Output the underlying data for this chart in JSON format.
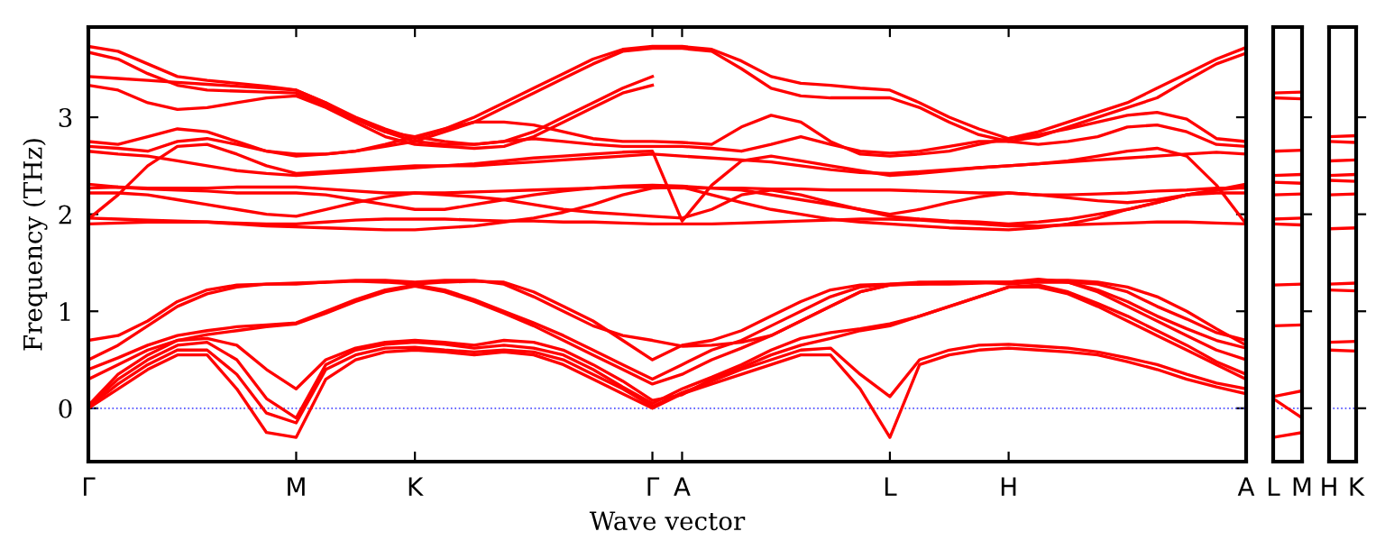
{
  "chart_data": [
    {
      "type": "line",
      "xlabel": "Wave vector",
      "ylabel": "Frequency (THz)",
      "categories": [
        "Γ",
        null,
        null,
        null,
        null,
        null,
        null,
        "M",
        null,
        null,
        null,
        "K",
        null,
        null,
        null,
        null,
        null,
        null,
        null,
        "Γ",
        "A",
        null,
        null,
        null,
        null,
        null,
        null,
        "L",
        null,
        null,
        null,
        "H",
        null,
        null,
        null,
        null,
        null,
        null,
        null,
        "A"
      ],
      "ylim": [
        -0.55,
        3.93
      ],
      "yticks": [
        0,
        1,
        2,
        3
      ],
      "marker": "none",
      "line_style": "solid",
      "ref_lines": [
        {
          "axis": "y",
          "value": 0,
          "label": null,
          "color": "#5050ff",
          "line_style": "dotted"
        }
      ],
      "series": [
        {
          "color": "#ff0000",
          "values": [
            3.73,
            3.68,
            3.55,
            3.42,
            3.38,
            3.35,
            3.32,
            3.28,
            3.15,
            3.0,
            2.88,
            2.78,
            2.88,
            3.0,
            3.15,
            3.3,
            3.45,
            3.6,
            3.7,
            3.73,
            3.73,
            3.7,
            3.58,
            3.42,
            3.35,
            3.33,
            3.3,
            3.28,
            3.15,
            3.0,
            2.88,
            2.78,
            2.85,
            2.95,
            3.05,
            3.15,
            3.3,
            3.45,
            3.6,
            3.72
          ]
        },
        {
          "color": "#ff0000",
          "values": [
            3.67,
            3.6,
            3.45,
            3.33,
            3.28,
            3.27,
            3.26,
            3.25,
            3.12,
            2.98,
            2.85,
            2.75,
            2.85,
            2.95,
            3.1,
            3.25,
            3.4,
            3.55,
            3.68,
            3.71,
            3.71,
            3.68,
            3.5,
            3.3,
            3.22,
            3.2,
            3.2,
            3.2,
            3.1,
            2.95,
            2.82,
            2.75,
            2.8,
            2.9,
            3.0,
            3.1,
            3.2,
            3.38,
            3.55,
            3.66
          ]
        },
        {
          "color": "#ff0000",
          "values": [
            3.42,
            3.4,
            3.38,
            3.36,
            3.34,
            3.32,
            3.3,
            3.28,
            3.15,
            2.98,
            2.85,
            2.8,
            2.75,
            2.72,
            2.75,
            2.85,
            3.0,
            3.15,
            3.3,
            3.42,
            null,
            null,
            null,
            null,
            null,
            null,
            null,
            null,
            null,
            null,
            null,
            null,
            null,
            null,
            null,
            null,
            null,
            null,
            null,
            null
          ]
        },
        {
          "color": "#ff0000",
          "values": [
            3.33,
            3.28,
            3.15,
            3.08,
            3.1,
            3.15,
            3.2,
            3.22,
            3.1,
            2.95,
            2.8,
            2.72,
            2.7,
            2.68,
            2.7,
            2.8,
            2.95,
            3.1,
            3.25,
            3.33,
            null,
            null,
            null,
            null,
            null,
            null,
            null,
            null,
            null,
            null,
            null,
            null,
            null,
            null,
            null,
            null,
            null,
            null,
            null,
            null
          ]
        },
        {
          "color": "#ff0000",
          "values": [
            2.75,
            2.72,
            2.8,
            2.88,
            2.85,
            2.75,
            2.65,
            2.6,
            2.62,
            2.65,
            2.72,
            2.8,
            2.88,
            2.95,
            2.95,
            2.92,
            2.85,
            2.78,
            2.75,
            2.75,
            2.74,
            2.72,
            2.9,
            3.02,
            2.95,
            2.75,
            2.62,
            2.6,
            2.62,
            2.65,
            2.72,
            2.78,
            2.82,
            2.88,
            2.95,
            3.02,
            3.05,
            2.98,
            2.78,
            2.75
          ]
        },
        {
          "color": "#ff0000",
          "values": [
            2.7,
            2.68,
            2.65,
            2.75,
            2.78,
            2.72,
            2.65,
            2.62,
            2.62,
            2.65,
            2.7,
            2.75,
            2.72,
            2.72,
            2.75,
            2.78,
            2.75,
            2.72,
            2.7,
            2.7,
            2.7,
            2.68,
            2.65,
            2.72,
            2.8,
            2.72,
            2.65,
            2.63,
            2.65,
            2.7,
            2.75,
            2.75,
            2.72,
            2.75,
            2.8,
            2.9,
            2.92,
            2.85,
            2.72,
            2.7
          ]
        },
        {
          "color": "#ff0000",
          "values": [
            2.65,
            2.62,
            2.6,
            2.55,
            2.5,
            2.45,
            2.42,
            2.4,
            2.42,
            2.44,
            2.46,
            2.48,
            2.5,
            2.52,
            2.55,
            2.58,
            2.6,
            2.62,
            2.64,
            2.65,
            1.93,
            2.3,
            2.55,
            2.6,
            2.55,
            2.5,
            2.45,
            2.4,
            2.42,
            2.45,
            2.48,
            2.5,
            2.52,
            2.54,
            2.56,
            2.58,
            2.6,
            2.62,
            2.64,
            2.62
          ]
        },
        {
          "color": "#ff0000",
          "values": [
            1.95,
            2.2,
            2.5,
            2.7,
            2.72,
            2.62,
            2.5,
            2.42,
            2.44,
            2.46,
            2.48,
            2.5,
            2.5,
            2.5,
            2.52,
            2.54,
            2.56,
            2.58,
            2.6,
            2.62,
            2.6,
            2.58,
            2.56,
            2.54,
            2.5,
            2.46,
            2.43,
            2.42,
            2.44,
            2.46,
            2.48,
            2.5,
            2.52,
            2.55,
            2.6,
            2.65,
            2.68,
            2.6,
            2.3,
            1.9
          ]
        },
        {
          "color": "#ff0000",
          "values": [
            2.27,
            2.28,
            2.27,
            2.27,
            2.27,
            2.28,
            2.28,
            2.28,
            2.26,
            2.24,
            2.22,
            2.22,
            2.22,
            2.23,
            2.24,
            2.25,
            2.26,
            2.27,
            2.28,
            2.28,
            2.27,
            2.27,
            2.27,
            2.26,
            2.26,
            2.25,
            2.25,
            2.25,
            2.24,
            2.23,
            2.22,
            2.22,
            2.2,
            2.2,
            2.21,
            2.22,
            2.24,
            2.25,
            2.27,
            2.27
          ]
        },
        {
          "color": "#ff0000",
          "values": [
            2.22,
            2.22,
            2.2,
            2.15,
            2.1,
            2.05,
            2.0,
            1.98,
            2.05,
            2.12,
            2.18,
            2.22,
            2.2,
            2.18,
            2.15,
            2.1,
            2.05,
            2.02,
            2.0,
            1.98,
            1.96,
            2.05,
            2.2,
            2.25,
            2.2,
            2.12,
            2.05,
            2.0,
            2.05,
            2.12,
            2.18,
            2.22,
            2.2,
            2.17,
            2.14,
            2.12,
            2.15,
            2.2,
            2.22,
            2.22
          ]
        },
        {
          "color": "#ff0000",
          "values": [
            2.31,
            2.28,
            2.26,
            2.25,
            2.24,
            2.22,
            2.22,
            2.22,
            2.2,
            2.15,
            2.1,
            2.05,
            2.05,
            2.1,
            2.15,
            2.2,
            2.24,
            2.27,
            2.29,
            2.3,
            2.29,
            2.27,
            2.25,
            2.2,
            2.15,
            2.1,
            2.05,
            1.98,
            1.95,
            1.93,
            1.92,
            1.9,
            1.92,
            1.95,
            2.0,
            2.05,
            2.12,
            2.2,
            2.25,
            2.31
          ]
        },
        {
          "color": "#ff0000",
          "values": [
            1.96,
            1.95,
            1.94,
            1.93,
            1.92,
            1.9,
            1.88,
            1.87,
            1.86,
            1.85,
            1.84,
            1.84,
            1.86,
            1.88,
            1.92,
            1.96,
            2.02,
            2.1,
            2.2,
            2.27,
            2.28,
            2.2,
            2.12,
            2.05,
            2.0,
            1.95,
            1.92,
            1.9,
            1.88,
            1.86,
            1.85,
            1.84,
            1.86,
            1.9,
            1.96,
            2.05,
            2.12,
            2.2,
            2.25,
            2.28
          ]
        },
        {
          "color": "#ff0000",
          "values": [
            1.9,
            1.91,
            1.92,
            1.92,
            1.92,
            1.91,
            1.9,
            1.9,
            1.92,
            1.94,
            1.95,
            1.95,
            1.95,
            1.94,
            1.93,
            1.93,
            1.92,
            1.92,
            1.91,
            1.9,
            1.9,
            1.9,
            1.91,
            1.92,
            1.93,
            1.94,
            1.95,
            1.95,
            1.94,
            1.92,
            1.9,
            1.88,
            1.88,
            1.89,
            1.9,
            1.91,
            1.92,
            1.92,
            1.91,
            1.9
          ]
        },
        {
          "color": "#ff0000",
          "values": [
            0,
            0.2,
            0.4,
            0.55,
            0.55,
            0.2,
            -0.25,
            -0.3,
            0.3,
            0.5,
            0.58,
            0.6,
            0.58,
            0.55,
            0.58,
            0.55,
            0.45,
            0.3,
            0.15,
            0,
            0.15,
            0.25,
            0.35,
            0.45,
            0.55,
            0.55,
            0.2,
            -0.3,
            0.45,
            0.55,
            0.6,
            0.62,
            0.6,
            0.58,
            0.55,
            0.48,
            0.4,
            0.3,
            0.22,
            0.15
          ]
        },
        {
          "color": "#ff0000",
          "values": [
            0.01,
            0.25,
            0.45,
            0.6,
            0.6,
            0.35,
            -0.05,
            -0.15,
            0.4,
            0.55,
            0.62,
            0.63,
            0.6,
            0.58,
            0.6,
            0.58,
            0.5,
            0.35,
            0.2,
            0.02,
            0.16,
            0.28,
            0.4,
            0.5,
            0.6,
            0.62,
            0.35,
            0.12,
            0.5,
            0.6,
            0.65,
            0.66,
            0.64,
            0.62,
            0.58,
            0.52,
            0.45,
            0.35,
            0.26,
            0.2
          ]
        },
        {
          "color": "#ff0000",
          "values": [
            0.02,
            0.3,
            0.5,
            0.65,
            0.68,
            0.5,
            0.1,
            -0.1,
            0.45,
            0.6,
            0.66,
            0.68,
            0.66,
            0.62,
            0.65,
            0.62,
            0.55,
            0.4,
            0.22,
            0.05,
            0.2,
            0.32,
            0.45,
            0.6,
            0.72,
            0.78,
            0.82,
            0.87,
            0.95,
            1.05,
            1.15,
            1.25,
            1.25,
            1.18,
            1.05,
            0.9,
            0.75,
            0.6,
            0.45,
            0.3
          ]
        },
        {
          "color": "#ff0000",
          "values": [
            0.03,
            0.35,
            0.55,
            0.7,
            0.72,
            0.65,
            0.4,
            0.2,
            0.5,
            0.62,
            0.68,
            0.7,
            0.68,
            0.65,
            0.7,
            0.68,
            0.6,
            0.45,
            0.28,
            0.08,
            0.14,
            0.3,
            0.42,
            0.55,
            0.65,
            0.72,
            0.8,
            0.85,
            0.95,
            1.05,
            1.15,
            1.25,
            1.27,
            1.2,
            1.08,
            0.95,
            0.8,
            0.65,
            0.48,
            0.35
          ]
        },
        {
          "color": "#ff0000",
          "values": [
            0.3,
            0.45,
            0.6,
            0.7,
            0.76,
            0.8,
            0.84,
            0.87,
            0.98,
            1.1,
            1.2,
            1.26,
            1.2,
            1.1,
            0.98,
            0.85,
            0.7,
            0.55,
            0.4,
            0.25,
            0.35,
            0.5,
            0.62,
            0.75,
            0.9,
            1.05,
            1.2,
            1.27,
            1.28,
            1.3,
            1.3,
            1.3,
            1.32,
            1.3,
            1.2,
            1.05,
            0.9,
            0.75,
            0.6,
            0.5
          ]
        },
        {
          "color": "#ff0000",
          "values": [
            0.4,
            0.52,
            0.65,
            0.75,
            0.8,
            0.84,
            0.86,
            0.88,
            1.0,
            1.12,
            1.22,
            1.27,
            1.22,
            1.12,
            1.0,
            0.88,
            0.75,
            0.6,
            0.45,
            0.3,
            0.45,
            0.6,
            0.7,
            0.85,
            1.0,
            1.15,
            1.25,
            1.28,
            1.28,
            1.28,
            1.29,
            1.3,
            1.33,
            1.3,
            1.22,
            1.1,
            0.95,
            0.82,
            0.7,
            0.62
          ]
        },
        {
          "color": "#ff0000",
          "values": [
            0.5,
            0.65,
            0.85,
            1.05,
            1.18,
            1.25,
            1.28,
            1.28,
            1.3,
            1.31,
            1.3,
            1.28,
            1.3,
            1.31,
            1.3,
            1.2,
            1.05,
            0.9,
            0.7,
            0.5,
            0.65,
            0.7,
            0.8,
            0.95,
            1.1,
            1.22,
            1.27,
            1.28,
            1.3,
            1.3,
            1.3,
            1.28,
            1.3,
            1.3,
            1.28,
            1.2,
            1.05,
            0.92,
            0.78,
            0.7
          ]
        },
        {
          "color": "#ff0000",
          "values": [
            0.7,
            0.75,
            0.9,
            1.1,
            1.22,
            1.27,
            1.28,
            1.29,
            1.3,
            1.32,
            1.32,
            1.3,
            1.32,
            1.32,
            1.28,
            1.15,
            1.0,
            0.85,
            0.75,
            0.7,
            0.64,
            0.65,
            0.68,
            0.75,
            0.9,
            1.05,
            1.2,
            1.27,
            1.29,
            1.3,
            1.3,
            1.3,
            1.32,
            1.32,
            1.3,
            1.25,
            1.15,
            1.0,
            0.82,
            0.65
          ]
        }
      ]
    },
    {
      "type": "line",
      "categories": [
        "L",
        "M"
      ],
      "ylim": [
        -0.55,
        3.93
      ],
      "yticks": [
        0,
        1,
        2,
        3
      ],
      "tick_labels": "x",
      "marker": "none",
      "line_style": "solid",
      "ref_lines": [
        {
          "axis": "y",
          "value": 0,
          "label": null,
          "color": "#5050ff",
          "line_style": "dotted"
        }
      ],
      "series": [
        {
          "color": "#ff0000",
          "values": [
            3.25,
            3.26
          ]
        },
        {
          "color": "#ff0000",
          "values": [
            3.2,
            3.19
          ]
        },
        {
          "color": "#ff0000",
          "values": [
            2.65,
            2.66
          ]
        },
        {
          "color": "#ff0000",
          "values": [
            2.4,
            2.41
          ]
        },
        {
          "color": "#ff0000",
          "values": [
            2.33,
            2.32
          ]
        },
        {
          "color": "#ff0000",
          "values": [
            2.2,
            2.21
          ]
        },
        {
          "color": "#ff0000",
          "values": [
            1.95,
            1.96
          ]
        },
        {
          "color": "#ff0000",
          "values": [
            1.9,
            1.89
          ]
        },
        {
          "color": "#ff0000",
          "values": [
            1.27,
            1.28
          ]
        },
        {
          "color": "#ff0000",
          "values": [
            0.85,
            0.86
          ]
        },
        {
          "color": "#ff0000",
          "values": [
            0.12,
            0.18
          ]
        },
        {
          "color": "#ff0000",
          "values": [
            0.1,
            -0.1
          ]
        },
        {
          "color": "#ff0000",
          "values": [
            -0.3,
            -0.25
          ]
        }
      ]
    },
    {
      "type": "line",
      "categories": [
        "H",
        "K"
      ],
      "ylim": [
        -0.55,
        3.93
      ],
      "yticks": [
        0,
        1,
        2,
        3
      ],
      "tick_labels": "x",
      "marker": "none",
      "line_style": "solid",
      "ref_lines": [
        {
          "axis": "y",
          "value": 0,
          "label": null,
          "color": "#5050ff",
          "line_style": "dotted"
        }
      ],
      "series": [
        {
          "color": "#ff0000",
          "values": [
            2.8,
            2.81
          ]
        },
        {
          "color": "#ff0000",
          "values": [
            2.75,
            2.74
          ]
        },
        {
          "color": "#ff0000",
          "values": [
            2.55,
            2.56
          ]
        },
        {
          "color": "#ff0000",
          "values": [
            2.4,
            2.41
          ]
        },
        {
          "color": "#ff0000",
          "values": [
            2.35,
            2.34
          ]
        },
        {
          "color": "#ff0000",
          "values": [
            2.2,
            2.21
          ]
        },
        {
          "color": "#ff0000",
          "values": [
            1.85,
            1.86
          ]
        },
        {
          "color": "#ff0000",
          "values": [
            1.28,
            1.29
          ]
        },
        {
          "color": "#ff0000",
          "values": [
            1.22,
            1.21
          ]
        },
        {
          "color": "#ff0000",
          "values": [
            0.68,
            0.69
          ]
        },
        {
          "color": "#ff0000",
          "values": [
            0.6,
            0.59
          ]
        }
      ]
    }
  ]
}
